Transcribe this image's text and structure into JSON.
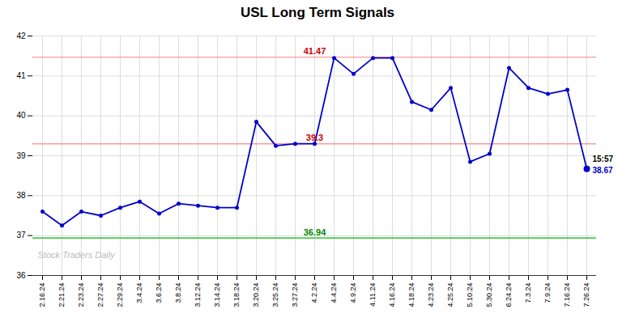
{
  "chart_data": {
    "type": "line",
    "title": "USL Long Term Signals",
    "categories": [
      "2.16.24",
      "2.21.24",
      "2.23.24",
      "2.27.24",
      "2.29.24",
      "3.4.24",
      "3.6.24",
      "3.8.24",
      "3.12.24",
      "3.14.24",
      "3.18.24",
      "3.20.24",
      "3.25.24",
      "3.27.24",
      "4.2.24",
      "4.4.24",
      "4.9.24",
      "4.11.24",
      "4.16.24",
      "4.18.24",
      "4.23.24",
      "4.25.24",
      "5.10.24",
      "5.30.24",
      "6.24.24",
      "7.3.24",
      "7.9.24",
      "7.16.24",
      "7.26.24"
    ],
    "values": [
      37.6,
      37.25,
      37.6,
      37.5,
      37.7,
      37.85,
      37.55,
      37.8,
      37.75,
      37.7,
      37.7,
      39.85,
      39.25,
      39.3,
      39.3,
      41.45,
      41.05,
      41.45,
      41.45,
      40.35,
      40.15,
      40.7,
      38.85,
      39.05,
      41.2,
      40.7,
      40.55,
      40.65,
      38.67
    ],
    "color": "#0000cc",
    "marker": "circle",
    "ylim": [
      36,
      42
    ],
    "yticks": [
      36,
      37,
      38,
      39,
      40,
      41,
      42
    ],
    "grid": true,
    "reference_lines": [
      {
        "value": 41.47,
        "label": "41.47",
        "color": "#ff9999",
        "label_color": "#cc0000"
      },
      {
        "value": 39.3,
        "label": "39.3",
        "color": "#ff9999",
        "label_color": "#cc0000"
      },
      {
        "value": 36.94,
        "label": "36.94",
        "color": "#00bb00",
        "label_color": "#008800"
      }
    ],
    "last_point_annotations": [
      {
        "text": "15:57",
        "color": "#000000"
      },
      {
        "text": "38.67",
        "color": "#0000cc"
      }
    ],
    "watermark": {
      "text": "Stock Traders Daily",
      "color": "#bbbbbb"
    }
  }
}
